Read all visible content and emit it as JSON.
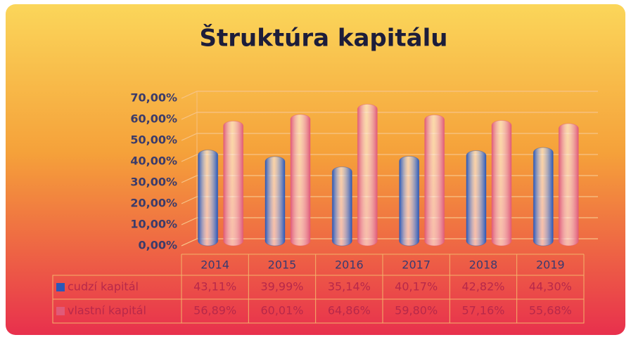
{
  "chart_data": {
    "type": "bar",
    "title": "Štruktúra kapitálu",
    "categories": [
      "2014",
      "2015",
      "2016",
      "2017",
      "2018",
      "2019"
    ],
    "series": [
      {
        "name": "cudzí kapitál",
        "color": "#2a58b8",
        "values": [
          43.11,
          39.99,
          35.14,
          40.17,
          42.82,
          44.3
        ],
        "value_labels": [
          "43,11%",
          "39,99%",
          "35,14%",
          "40,17%",
          "42,82%",
          "44,30%"
        ]
      },
      {
        "name": "vlastní kapitál",
        "color": "#e05a78",
        "values": [
          56.89,
          60.01,
          64.86,
          59.8,
          57.16,
          55.68
        ],
        "value_labels": [
          "56,89%",
          "60,01%",
          "64,86%",
          "59,80%",
          "57,16%",
          "55,68%"
        ]
      }
    ],
    "ylim": [
      0,
      70
    ],
    "yticks": [
      {
        "value": 0,
        "label": "0,00%"
      },
      {
        "value": 10,
        "label": "10,00%"
      },
      {
        "value": 20,
        "label": "20,00%"
      },
      {
        "value": 30,
        "label": "30,00%"
      },
      {
        "value": 40,
        "label": "40,00%"
      },
      {
        "value": 50,
        "label": "50,00%"
      },
      {
        "value": 60,
        "label": "60,00%"
      },
      {
        "value": 70,
        "label": "70,00%"
      }
    ],
    "grid": true
  }
}
